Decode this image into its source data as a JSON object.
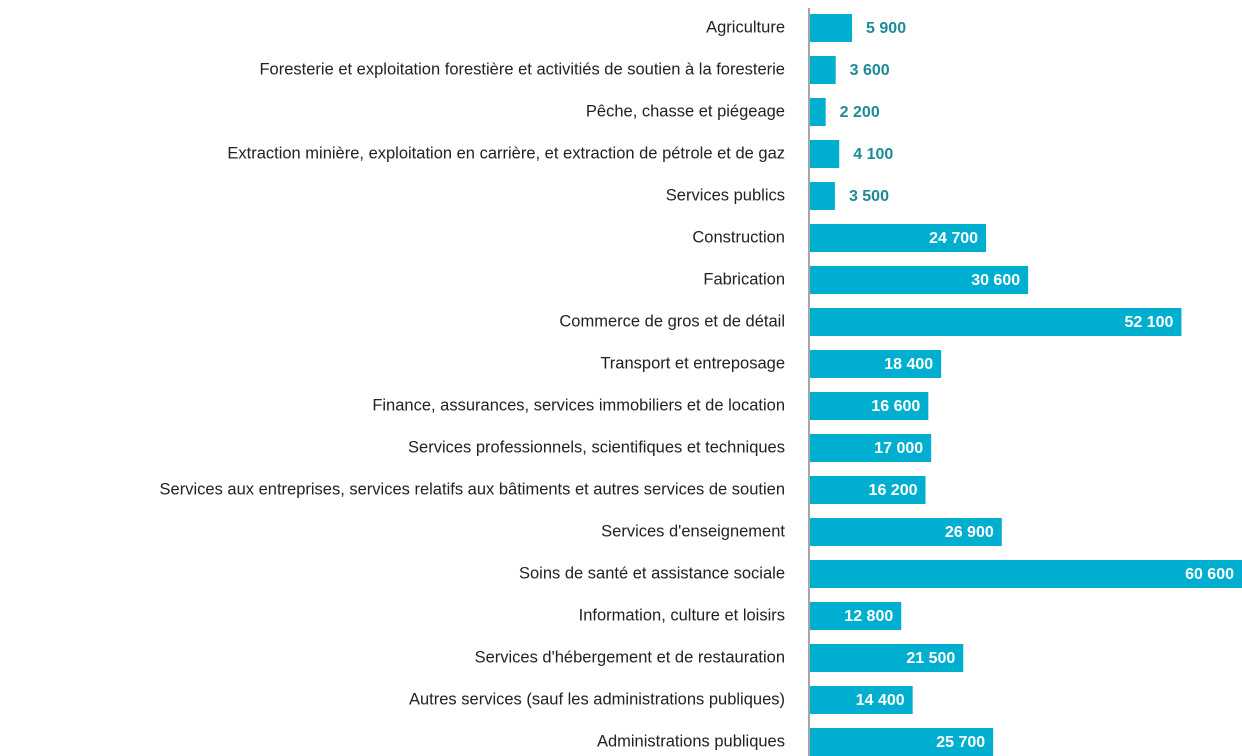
{
  "chart_data": {
    "type": "bar",
    "orientation": "horizontal",
    "categories": [
      "Agriculture",
      "Foresterie et exploitation forestière et activitiés de soutien à la foresterie",
      "Pêche, chasse et piégeage",
      "Extraction minière, exploitation en carrière, et extraction de pétrole et de gaz",
      "Services publics",
      "Construction",
      "Fabrication",
      "Commerce de gros et de détail",
      "Transport et entreposage",
      "Finance, assurances, services immobiliers et de location",
      "Services professionnels, scientifiques et techniques",
      "Services aux entreprises, services relatifs aux bâtiments et autres services de soutien",
      "Services d'enseignement",
      "Soins de santé et assistance sociale",
      "Information, culture et loisirs",
      "Services d'hébergement et de restauration",
      "Autres services (sauf les administrations publiques)",
      "Administrations publiques"
    ],
    "values": [
      5900,
      3600,
      2200,
      4100,
      3500,
      24700,
      30600,
      52100,
      18400,
      16600,
      17000,
      16200,
      26900,
      60600,
      12800,
      21500,
      14400,
      25700
    ],
    "value_labels": [
      "5 900",
      "3 600",
      "2 200",
      "4 100",
      "3 500",
      "24 700",
      "30 600",
      "52 100",
      "18 400",
      "16 600",
      "17 000",
      "16 200",
      "26 900",
      "60 600",
      "12 800",
      "21 500",
      "14 400",
      "25 700"
    ],
    "color": "#00aed0"
  }
}
